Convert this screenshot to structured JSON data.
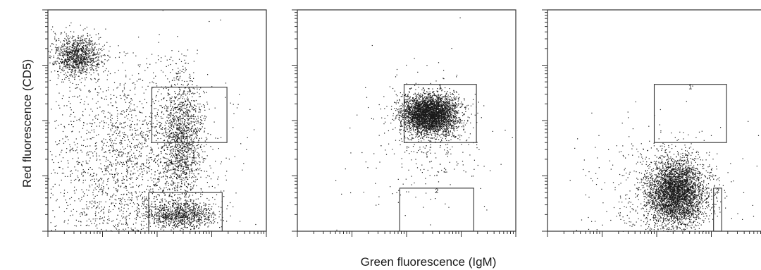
{
  "chart_data": {
    "type": "scatter",
    "xlabel": "Green fluorescence (IgM)",
    "ylabel": "Red fluorescence (CD5)",
    "xscale": "log",
    "yscale": "log",
    "xlim": [
      1,
      10000
    ],
    "ylim": [
      1,
      10000
    ],
    "xlim_note": "4-decade log scale, tick labels not printed",
    "grid": false,
    "legend": "none",
    "dot_color": "#1a1a1a",
    "panels": [
      {
        "gates": [
          {
            "label": "1",
            "x": [
              80,
              1900
            ],
            "y": [
              40,
              400
            ]
          },
          {
            "label": "2",
            "x": [
              70,
              1550
            ],
            "y": [
              1,
              5
            ]
          }
        ],
        "clusters": [
          {
            "cx": 3.4,
            "cy": 1500,
            "sx": 0.22,
            "sy": 0.18,
            "n": 1100
          },
          {
            "cx": 280,
            "cy": 50,
            "sx": 0.18,
            "sy": 0.55,
            "n": 1300
          },
          {
            "cx": 260,
            "cy": 2,
            "sx": 0.32,
            "sy": 0.12,
            "n": 900
          },
          {
            "cx": 30,
            "cy": 15,
            "sx": 0.75,
            "sy": 0.9,
            "n": 2200
          }
        ]
      },
      {
        "gates": [
          {
            "label": "1",
            "x": [
              90,
              1900
            ],
            "y": [
              40,
              450
            ]
          },
          {
            "label": "2",
            "x": [
              75,
              1700
            ],
            "y": [
              1,
              6
            ]
          }
        ],
        "clusters": [
          {
            "cx": 260,
            "cy": 130,
            "sx": 0.25,
            "sy": 0.18,
            "n": 3800
          },
          {
            "cx": 200,
            "cy": 40,
            "sx": 0.6,
            "sy": 0.7,
            "n": 300
          }
        ]
      },
      {
        "gates": [
          {
            "label": "1",
            "x": [
              90,
              1900
            ],
            "y": [
              40,
              450
            ]
          },
          {
            "label": "2",
            "x": [
              1100,
              1550
            ],
            "y": [
              1,
              6
            ]
          }
        ],
        "clusters": [
          {
            "cx": 220,
            "cy": 5,
            "sx": 0.26,
            "sy": 0.3,
            "n": 3600
          },
          {
            "cx": 120,
            "cy": 5,
            "sx": 0.7,
            "sy": 0.6,
            "n": 500
          }
        ]
      }
    ]
  }
}
